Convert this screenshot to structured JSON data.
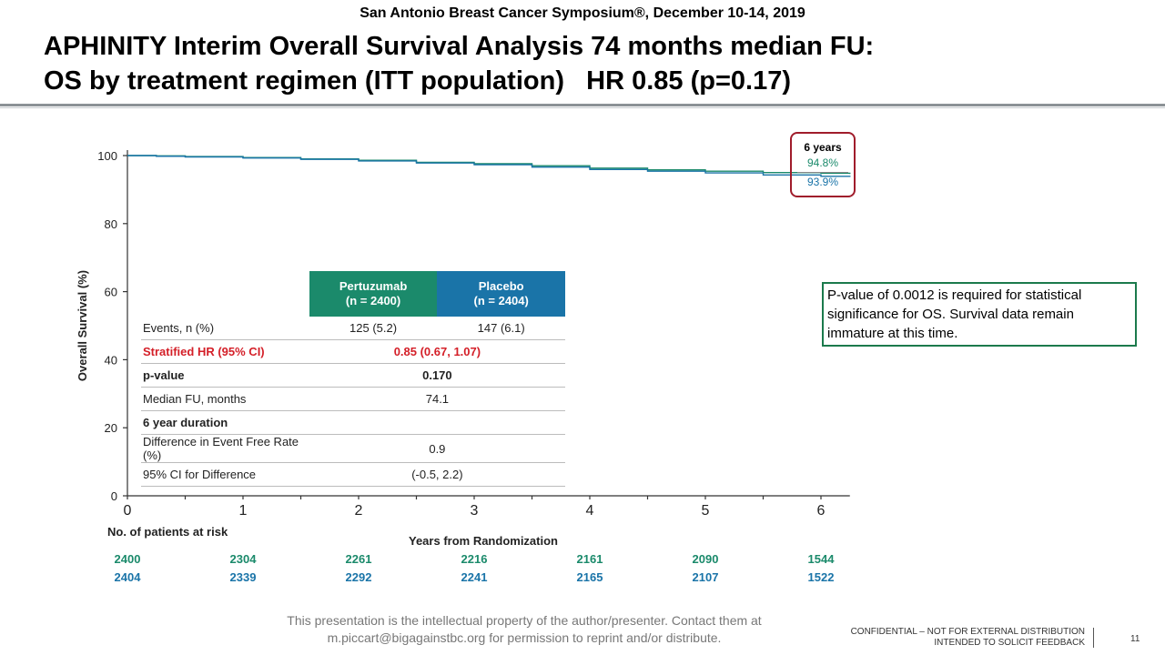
{
  "header": "San Antonio Breast Cancer Symposium®, December 10-14, 2019",
  "title_line1": "APHINITY Interim Overall Survival Analysis 74 months median FU:",
  "title_line2": "OS by treatment regimen (ITT population)   HR 0.85 (p=0.17)",
  "chart_data": {
    "type": "line",
    "xlabel": "Years from Randomization",
    "ylabel": "Overall Survival (%)",
    "xlim": [
      0,
      6.25
    ],
    "ylim": [
      0,
      100
    ],
    "x_ticks": [
      0,
      1,
      2,
      3,
      4,
      5,
      6
    ],
    "y_ticks": [
      0,
      20,
      40,
      60,
      80,
      100
    ],
    "grid": false,
    "series": [
      {
        "name": "Pertuzumab",
        "color": "#1b8a6b",
        "x": [
          0,
          0.25,
          0.5,
          1,
          1.5,
          2,
          2.5,
          3,
          3.5,
          4,
          4.5,
          5,
          5.5,
          6,
          6.25
        ],
        "values": [
          100,
          99.9,
          99.7,
          99.4,
          99.0,
          98.6,
          98.0,
          97.6,
          97.0,
          96.3,
          95.8,
          95.4,
          95.0,
          94.8,
          94.6
        ]
      },
      {
        "name": "Placebo",
        "color": "#1a74a8",
        "x": [
          0,
          0.25,
          0.5,
          1,
          1.5,
          2,
          2.5,
          3,
          3.5,
          4,
          4.5,
          5,
          5.5,
          6,
          6.25
        ],
        "values": [
          100,
          99.8,
          99.6,
          99.3,
          98.9,
          98.4,
          97.8,
          97.3,
          96.6,
          95.9,
          95.4,
          94.9,
          94.3,
          93.9,
          93.7
        ]
      }
    ],
    "at_risk_label": "No. of patients at risk",
    "at_risk": [
      {
        "color": "#1b8a6b",
        "values": [
          "2400",
          "2304",
          "2261",
          "2216",
          "2161",
          "2090",
          "1544"
        ]
      },
      {
        "color": "#1a74a8",
        "values": [
          "2404",
          "2339",
          "2292",
          "2241",
          "2165",
          "2107",
          "1522"
        ]
      }
    ]
  },
  "table": {
    "header_pertuzumab_1": "Pertuzumab",
    "header_pertuzumab_2": "(n = 2400)",
    "header_placebo_1": "Placebo",
    "header_placebo_2": "(n = 2404)",
    "rows": [
      {
        "label": "Events, n (%)",
        "pertuzumab": "125 (5.2)",
        "placebo": "147 (6.1)"
      },
      {
        "label": "Stratified HR (95% CI)",
        "combined": "0.85 (0.67, 1.07)"
      },
      {
        "label": "p-value",
        "combined": "0.170"
      },
      {
        "label": "Median FU, months",
        "combined": "74.1"
      },
      {
        "label": "6 year duration"
      },
      {
        "label": "Difference in Event Free Rate (%)",
        "combined": "0.9"
      },
      {
        "label": "95% CI for Difference",
        "combined": "(-0.5, 2.2)"
      }
    ]
  },
  "six_year_box": {
    "title": "6 years",
    "pertuzumab": "94.8%",
    "placebo": "93.9%"
  },
  "note": "P-value of 0.0012 is required for statistical significance for OS. Survival data remain immature at this time.",
  "footer_line1": "This presentation is the intellectual property of the author/presenter. Contact them at",
  "footer_line2": "m.piccart@bigagainstbc.org for permission to reprint and/or distribute.",
  "confidential_line1": "CONFIDENTIAL – NOT FOR EXTERNAL DISTRIBUTION",
  "confidential_line2": "INTENDED TO SOLICIT FEEDBACK",
  "page_number": "11"
}
